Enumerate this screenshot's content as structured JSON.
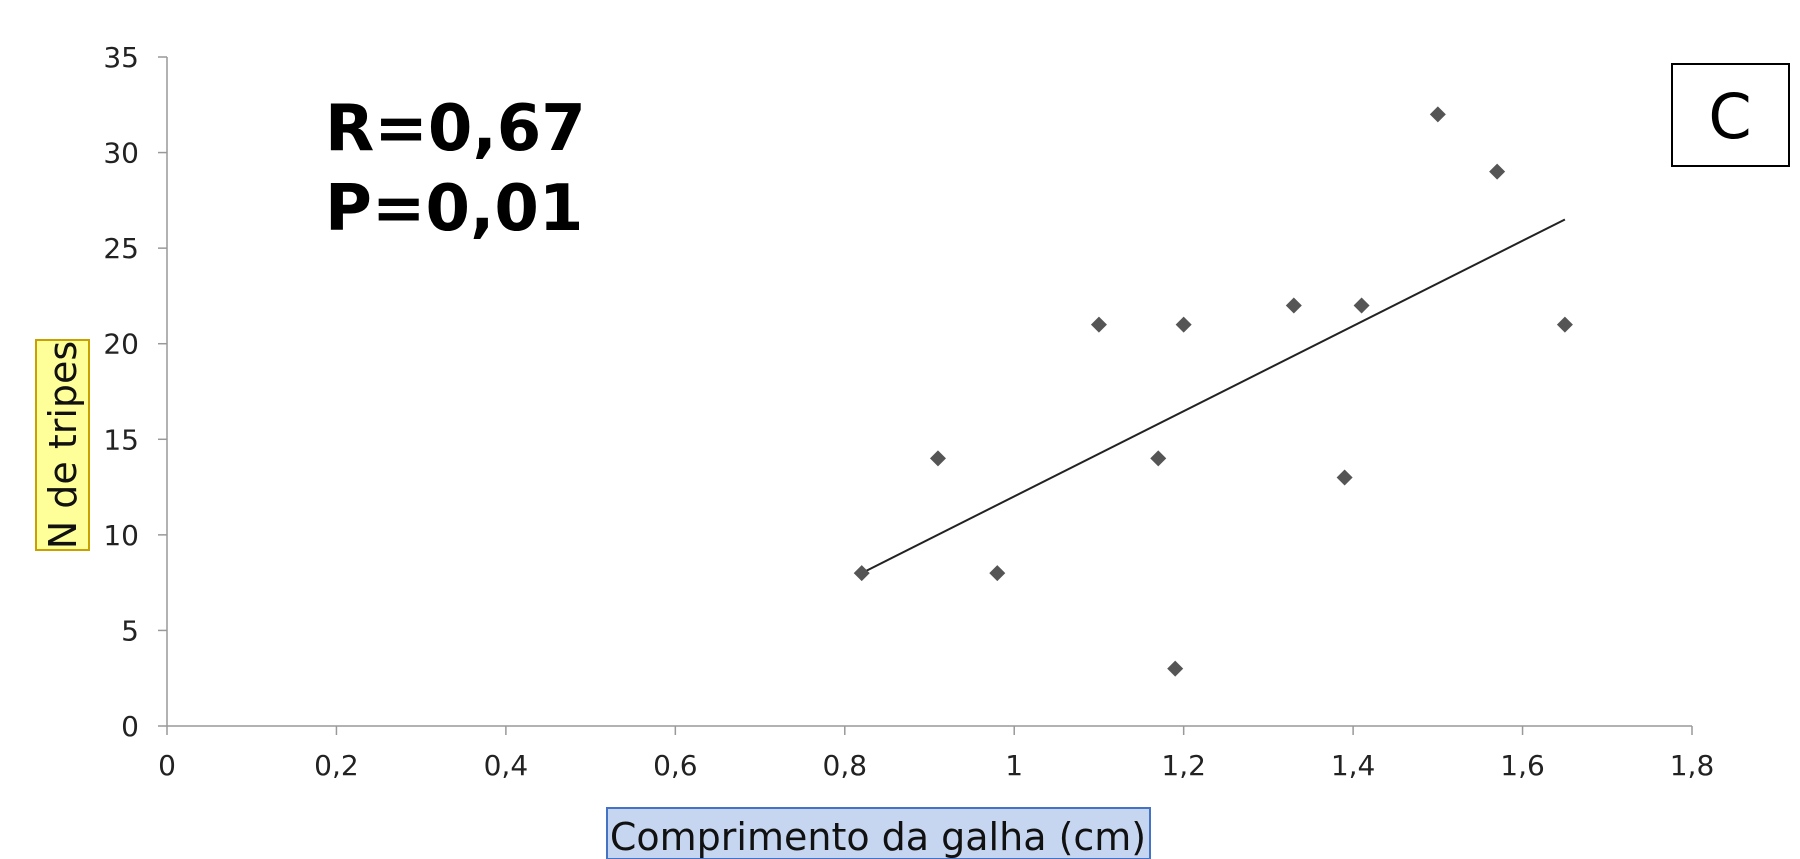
{
  "chart_data": {
    "type": "scatter",
    "x": [
      0.82,
      0.91,
      0.98,
      1.1,
      1.17,
      1.19,
      1.2,
      1.33,
      1.39,
      1.41,
      1.5,
      1.57,
      1.65
    ],
    "y": [
      8,
      14,
      8,
      21,
      14,
      3,
      21,
      22,
      13,
      22,
      32,
      29,
      21
    ],
    "trendline": {
      "x": [
        0.82,
        1.65
      ],
      "y": [
        8.0,
        26.5
      ]
    },
    "xlabel": "Comprimento da galha (cm)",
    "ylabel": "N de tripes",
    "xlim": [
      0,
      1.8
    ],
    "ylim": [
      0,
      35
    ],
    "x_ticks": [
      "0",
      "0,2",
      "0,4",
      "0,6",
      "0,8",
      "1",
      "1,2",
      "1,4",
      "1,6",
      "1,8"
    ],
    "y_ticks": [
      "0",
      "5",
      "10",
      "15",
      "20",
      "25",
      "30",
      "35"
    ],
    "annotations": {
      "r": "R=0,67",
      "p": "P=0,01",
      "panel": "C"
    },
    "grid": false,
    "legend": "none"
  },
  "colors": {
    "marker": "#555555",
    "trendline": "#222222",
    "axis": "#999999",
    "xlabel_bg": "#c6d6f0",
    "xlabel_border": "#4472c4",
    "ylabel_bg": "#ffff99",
    "ylabel_border": "#c8a000"
  }
}
